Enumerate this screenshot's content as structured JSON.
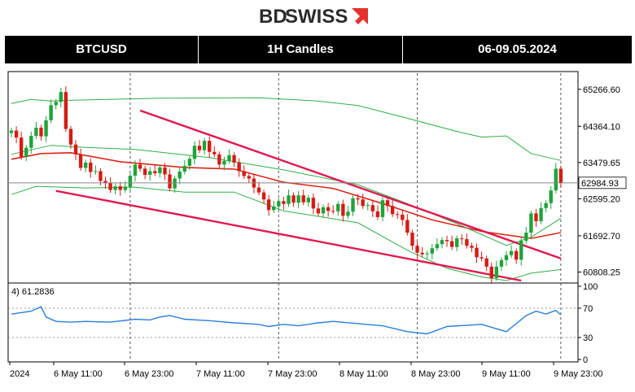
{
  "brand": {
    "name_bd": "BD",
    "name_swiss": "SWISS",
    "dark": "#2b2b2b",
    "accent": "#e6322d"
  },
  "header": {
    "symbol": "BTCUSD",
    "timeframe": "1H Candles",
    "date_range": "06-09.05.2024"
  },
  "chart_data": {
    "type": "candlestick",
    "price_axis_ticks": [
      "65266.60",
      "64364.10",
      "63479.65",
      "62595.20",
      "61692.70",
      "60808.25"
    ],
    "current_price": "62984.93",
    "ylim": [
      60620,
      65660
    ],
    "x_ticks": [
      "2024",
      "6 May 11:00",
      "6 May 23:00",
      "7 May 11:00",
      "7 May 23:00",
      "8 May 11:00",
      "8 May 23:00",
      "9 May 11:00",
      "9 May 23:00"
    ],
    "closes": [
      64260,
      64090,
      63620,
      63840,
      64130,
      64330,
      64120,
      64510,
      64880,
      64960,
      65200,
      64300,
      63920,
      63680,
      63350,
      63480,
      63250,
      63270,
      63030,
      62980,
      62810,
      62900,
      62810,
      62890,
      63160,
      63430,
      63330,
      63180,
      63270,
      63220,
      63360,
      63190,
      62850,
      63090,
      63260,
      63400,
      63570,
      63890,
      63780,
      64010,
      63740,
      63680,
      63430,
      63520,
      63660,
      63480,
      63270,
      63150,
      63090,
      62870,
      62750,
      62580,
      62320,
      62410,
      62540,
      62470,
      62680,
      62500,
      62680,
      62510,
      62620,
      62360,
      62240,
      62390,
      62300,
      62290,
      62470,
      62180,
      62280,
      62610,
      62580,
      62420,
      62440,
      62290,
      62150,
      62560,
      62420,
      62220,
      62210,
      62080,
      61770,
      61450,
      61280,
      61240,
      61260,
      61390,
      61490,
      61590,
      61560,
      61420,
      61630,
      61610,
      61450,
      61400,
      61170,
      61140,
      60940,
      60660,
      60940,
      61100,
      61220,
      61320,
      61110,
      61570,
      61770,
      62240,
      62050,
      62370,
      62490,
      62800,
      63330,
      62980
    ],
    "series": [
      {
        "name": "ema",
        "color": "#e02418",
        "values": [
          [
            0,
            63560
          ],
          [
            6,
            63700
          ],
          [
            12,
            63720
          ],
          [
            22,
            63500
          ],
          [
            35,
            63360
          ],
          [
            45,
            63320
          ],
          [
            55,
            63000
          ],
          [
            65,
            62850
          ],
          [
            75,
            62480
          ],
          [
            85,
            62080
          ],
          [
            95,
            61800
          ],
          [
            105,
            61630
          ],
          [
            111,
            61770
          ]
        ]
      },
      {
        "name": "upper-band",
        "color": "#2fae45",
        "values": [
          [
            0,
            64920
          ],
          [
            4,
            65020
          ],
          [
            8,
            64980
          ],
          [
            12,
            65000
          ],
          [
            30,
            65050
          ],
          [
            50,
            65060
          ],
          [
            62,
            64980
          ],
          [
            70,
            64870
          ],
          [
            80,
            64560
          ],
          [
            90,
            64240
          ],
          [
            95,
            64100
          ],
          [
            100,
            64130
          ],
          [
            105,
            63700
          ],
          [
            111,
            63530
          ]
        ]
      },
      {
        "name": "mid-band",
        "color": "#2fae45",
        "values": [
          [
            0,
            63680
          ],
          [
            8,
            63900
          ],
          [
            15,
            63850
          ],
          [
            25,
            63800
          ],
          [
            40,
            63600
          ],
          [
            55,
            63300
          ],
          [
            70,
            62940
          ],
          [
            80,
            62480
          ],
          [
            90,
            61990
          ],
          [
            100,
            61460
          ],
          [
            105,
            61660
          ],
          [
            111,
            62120
          ]
        ]
      },
      {
        "name": "lower-band",
        "color": "#2fae45",
        "values": [
          [
            0,
            62700
          ],
          [
            5,
            62900
          ],
          [
            15,
            62860
          ],
          [
            25,
            62880
          ],
          [
            35,
            62760
          ],
          [
            45,
            62760
          ],
          [
            55,
            62300
          ],
          [
            70,
            62010
          ],
          [
            80,
            61340
          ],
          [
            88,
            60900
          ],
          [
            95,
            60690
          ],
          [
            100,
            60600
          ],
          [
            105,
            60780
          ],
          [
            111,
            60870
          ]
        ]
      }
    ],
    "trendlines": [
      {
        "color": "#e0194f",
        "from": [
          26,
          64750
        ],
        "to": [
          111,
          61140
        ]
      },
      {
        "color": "#e0194f",
        "from": [
          9,
          62790
        ],
        "to": [
          103,
          60600
        ]
      }
    ],
    "indicator": {
      "label": "4) 61.2836",
      "ticks": [
        "100",
        "70",
        "30",
        "0"
      ],
      "ylim": [
        0,
        100
      ],
      "levels": [
        70,
        30
      ],
      "color": "#2b7fd8",
      "values": [
        [
          0,
          62
        ],
        [
          4,
          66
        ],
        [
          6,
          72
        ],
        [
          7,
          58
        ],
        [
          9,
          52
        ],
        [
          12,
          51
        ],
        [
          15,
          52
        ],
        [
          20,
          51
        ],
        [
          25,
          55
        ],
        [
          28,
          54
        ],
        [
          30,
          58
        ],
        [
          32,
          60
        ],
        [
          35,
          55
        ],
        [
          40,
          53
        ],
        [
          45,
          50
        ],
        [
          50,
          48
        ],
        [
          52,
          45
        ],
        [
          55,
          48
        ],
        [
          58,
          46
        ],
        [
          62,
          50
        ],
        [
          65,
          52
        ],
        [
          70,
          49
        ],
        [
          75,
          46
        ],
        [
          80,
          38
        ],
        [
          84,
          35
        ],
        [
          88,
          45
        ],
        [
          95,
          48
        ],
        [
          100,
          38
        ],
        [
          104,
          60
        ],
        [
          106,
          66
        ],
        [
          108,
          62
        ],
        [
          110,
          67
        ],
        [
          111,
          61
        ]
      ]
    }
  }
}
